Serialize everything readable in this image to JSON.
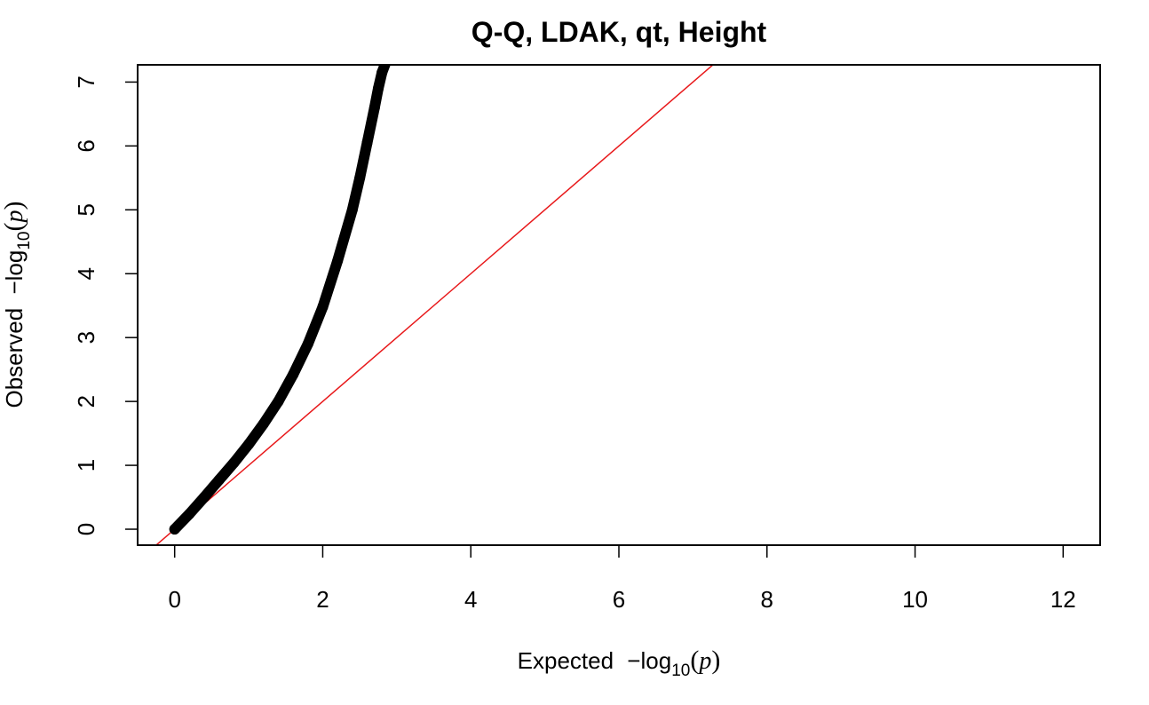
{
  "chart_data": {
    "type": "scatter",
    "title": "Q-Q, LDAK, qt, Height",
    "xlabel": {
      "prefix": "Expected",
      "minus": "−",
      "log": "log",
      "base": "10",
      "open": "(",
      "var": "p",
      "close": ")"
    },
    "ylabel": {
      "prefix": "Observed",
      "minus": "−",
      "log": "log",
      "base": "10",
      "open": "(",
      "var": "p",
      "close": ")"
    },
    "xlim": [
      -0.5,
      12.5
    ],
    "ylim": [
      -0.25,
      7.27
    ],
    "xticks": [
      0,
      2,
      4,
      6,
      8,
      10,
      12
    ],
    "yticks": [
      0,
      1,
      2,
      3,
      4,
      5,
      6,
      7
    ],
    "xtick_labels": [
      "0",
      "2",
      "4",
      "6",
      "8",
      "10",
      "12"
    ],
    "ytick_labels": [
      "0",
      "1",
      "2",
      "3",
      "4",
      "5",
      "6",
      "7"
    ],
    "grid": false,
    "series": [
      {
        "points_color": "#000000",
        "x": [
          0.0,
          0.2,
          0.4,
          0.6,
          0.8,
          1.0,
          1.2,
          1.4,
          1.6,
          1.8,
          2.0,
          2.2,
          2.4,
          2.5,
          2.6,
          2.7,
          2.75,
          2.8,
          2.85
        ],
        "y": [
          0.0,
          0.24,
          0.5,
          0.77,
          1.04,
          1.33,
          1.65,
          2.0,
          2.42,
          2.9,
          3.48,
          4.2,
          5.0,
          5.5,
          6.05,
          6.6,
          6.9,
          7.15,
          7.3
        ]
      }
    ],
    "reference_line": {
      "slope": 1,
      "intercept": 0,
      "color": "#e8191b"
    }
  }
}
